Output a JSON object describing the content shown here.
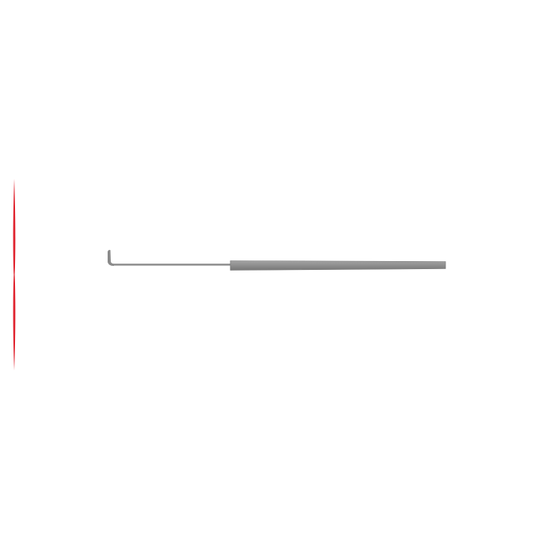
{
  "image": {
    "subject": "surgical-hook-instrument",
    "colors": {
      "background": "#ffffff",
      "instrument": "#8c8c8c",
      "instrument_shade": "#6f6f6f",
      "accent_line": "#e0232e"
    }
  }
}
